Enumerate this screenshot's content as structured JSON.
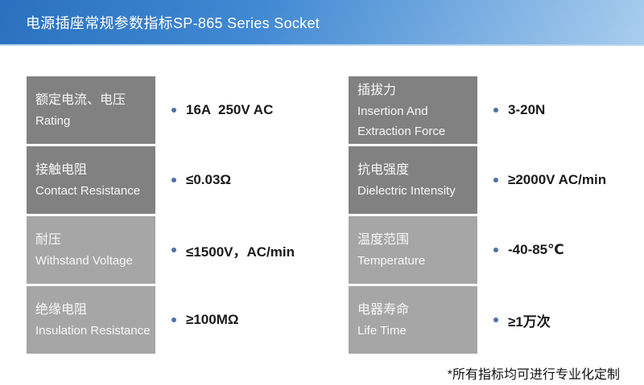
{
  "header": {
    "title": "电源插座常规参数指标SP-865 Series Socket"
  },
  "table": {
    "columns": [
      {
        "rows": [
          {
            "label_zh": "额定电流、电压",
            "label_en": "Rating",
            "value": "16A  250V AC"
          },
          {
            "label_zh": "接触电阻",
            "label_en": "Contact Resistance",
            "value": "≤0.03Ω"
          },
          {
            "label_zh": "耐压",
            "label_en": "Withstand Voltage",
            "value": "≤1500V，AC/min"
          },
          {
            "label_zh": "绝缘电阻",
            "label_en": "Insulation Resistance",
            "value": "≥100MΩ"
          }
        ]
      },
      {
        "rows": [
          {
            "label_zh": "插拔力",
            "label_en": "Insertion And Extraction Force",
            "value": "3-20N"
          },
          {
            "label_zh": "抗电强度",
            "label_en": "Dielectric Intensity",
            "value": "≥2000V AC/min"
          },
          {
            "label_zh": "温度范围",
            "label_en": "Temperature",
            "value": "-40-85℃"
          },
          {
            "label_zh": "电器寿命",
            "label_en": "Life Time",
            "value": "≥1万次"
          }
        ]
      }
    ]
  },
  "footnote": "*所有指标均可进行专业化定制",
  "colors": {
    "header_gradient_start": "#2a70bf",
    "header_gradient_mid": "#4189d3",
    "header_gradient_end": "#a9cdee",
    "box_dark": "#818181",
    "box_light": "#a6a6a6",
    "bullet": "#4f6fa8",
    "value_text": "#1a1a1a"
  }
}
